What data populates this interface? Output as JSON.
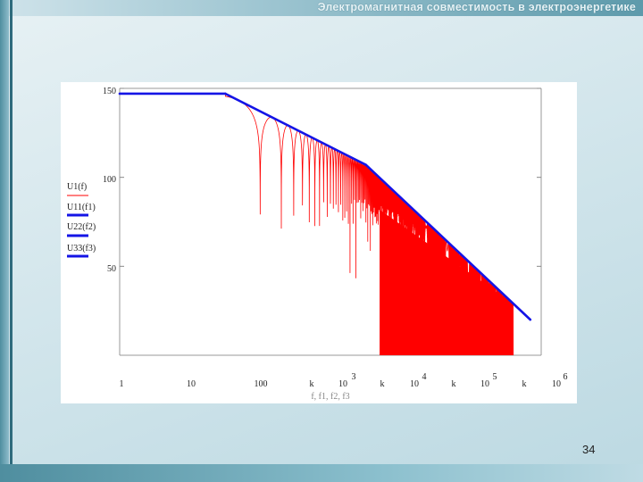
{
  "slide": {
    "title": "Электромагнитная совместимость в электроэнергетике",
    "page_number": "34"
  },
  "colors": {
    "red": "#ff0000",
    "blue": "#1414e6"
  },
  "chart_data": {
    "type": "line",
    "x_scale": "log",
    "xlim": [
      1,
      1000000
    ],
    "ylim": [
      0,
      150
    ],
    "x_tick_labels": [
      "1",
      "10",
      "100",
      "k",
      "10",
      "k",
      "10",
      "k",
      "10",
      "k",
      "10"
    ],
    "x_tick_exponents": [
      "3",
      "4",
      "5",
      "6"
    ],
    "y_tick_labels": [
      "150",
      "100",
      "50"
    ],
    "y_tick_values": [
      150,
      100,
      50
    ],
    "xlabel_fragment": "f, f1, f2, f3",
    "legend": [
      {
        "label": "U1(f)",
        "color": "#ff0000"
      },
      {
        "label": "U11(f1)",
        "color": "#1414e6"
      },
      {
        "label": "U22(f2)",
        "color": "#1414e6"
      },
      {
        "label": "U33(f3)",
        "color": "#1414e6"
      }
    ],
    "series": [
      {
        "name": "U11(f1)",
        "x": [
          1,
          32
        ],
        "y": [
          147,
          147
        ]
      },
      {
        "name": "U22(f2)",
        "x": [
          32,
          3200
        ],
        "y": [
          147,
          107
        ]
      },
      {
        "name": "U33(f3)",
        "x": [
          3200,
          700000
        ],
        "y": [
          107,
          20
        ]
      }
    ],
    "spectrum": {
      "name": "U1(f)",
      "plateau": 147,
      "corner1": 32,
      "corner2": 3200,
      "f_end": 400000,
      "first_zero": 100,
      "envelope_low": 20
    }
  }
}
